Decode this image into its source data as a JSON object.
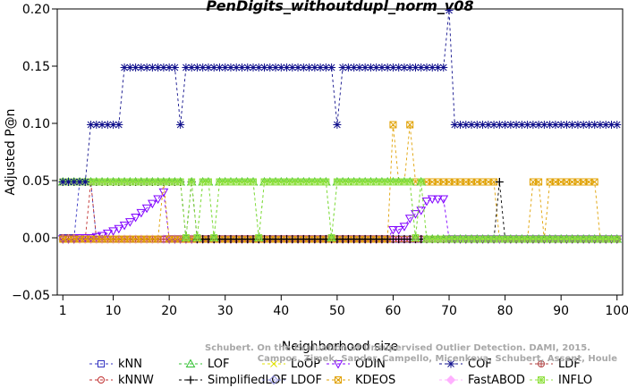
{
  "chart_data": {
    "type": "line",
    "title": "PenDigits_withoutdupl_norm_v08",
    "xlabel": "Neighborhood size",
    "ylabel": "Adjusted P@n",
    "xlim": [
      0,
      101
    ],
    "ylim": [
      -0.05,
      0.2
    ],
    "xticks": [
      1,
      10,
      20,
      30,
      40,
      50,
      60,
      70,
      80,
      90,
      100
    ],
    "yticks": [
      -0.05,
      0.0,
      0.05,
      0.1,
      0.15,
      0.2
    ],
    "ytick_labels": [
      "−0.05",
      "0.00",
      "0.05",
      "0.10",
      "0.15",
      "0.20"
    ],
    "grid": false,
    "legend_position": "bottom",
    "watermark": [
      "Schubert. On the Evaluation of Unsupervised Outlier Detection. DAMI, 2015.",
      "Campos, Zimek, Sander, Campello, Micenkova, Schubert, Assent, Houle"
    ],
    "series": [
      {
        "name": "kNN",
        "color": "#3030c0",
        "marker": "square",
        "segments": [
          [
            1,
            3,
            0.0
          ],
          [
            4,
            6,
            0.0488
          ],
          [
            7,
            100,
            -0.0012
          ]
        ]
      },
      {
        "name": "kNNW",
        "color": "#c03030",
        "marker": "circle",
        "segments": [
          [
            1,
            3,
            0.0
          ],
          [
            4,
            5,
            -0.0012
          ],
          [
            6,
            6,
            0.0488
          ],
          [
            7,
            100,
            -0.0012
          ]
        ]
      },
      {
        "name": "LOF",
        "color": "#30c030",
        "marker": "triangle-up",
        "segments": [
          [
            1,
            22,
            0.0488
          ],
          [
            23,
            23,
            0.0
          ],
          [
            24,
            24,
            0.0488
          ],
          [
            25,
            25,
            0.0
          ],
          [
            26,
            27,
            0.0488
          ],
          [
            28,
            28,
            0.0
          ],
          [
            29,
            35,
            0.0488
          ],
          [
            36,
            36,
            0.0
          ],
          [
            37,
            48,
            0.0488
          ],
          [
            49,
            49,
            0.0
          ],
          [
            50,
            63,
            0.0488
          ],
          [
            64,
            64,
            0.0
          ],
          [
            65,
            65,
            0.0488
          ],
          [
            66,
            100,
            -0.0012
          ]
        ]
      },
      {
        "name": "SimplifiedLOF",
        "color": "#000000",
        "marker": "plus",
        "segments": [
          [
            1,
            22,
            0.0488
          ],
          [
            23,
            23,
            0.0
          ],
          [
            24,
            24,
            0.0488
          ],
          [
            25,
            78,
            -0.0012
          ],
          [
            79,
            79,
            0.0488
          ],
          [
            80,
            100,
            -0.0012
          ]
        ]
      },
      {
        "name": "LoOP",
        "color": "#e0e000",
        "marker": "x",
        "segments": [
          [
            1,
            100,
            -0.0012
          ]
        ]
      },
      {
        "name": "LDOF",
        "color": "#9090e0",
        "marker": "diamond",
        "segments": [
          [
            1,
            100,
            -0.0012
          ]
        ]
      },
      {
        "name": "ODIN",
        "color": "#8000ff",
        "marker": "triangle-down",
        "values": [
          [
            1,
            -0.001
          ],
          [
            2,
            -0.001
          ],
          [
            3,
            -0.001
          ],
          [
            4,
            0.0
          ],
          [
            5,
            0.0
          ],
          [
            6,
            0.0
          ],
          [
            7,
            0.001
          ],
          [
            8,
            0.002
          ],
          [
            9,
            0.004
          ],
          [
            10,
            0.006
          ],
          [
            11,
            0.008
          ],
          [
            12,
            0.011
          ],
          [
            13,
            0.014
          ],
          [
            14,
            0.018
          ],
          [
            15,
            0.022
          ],
          [
            16,
            0.026
          ],
          [
            17,
            0.03
          ],
          [
            18,
            0.034
          ],
          [
            19,
            0.04
          ],
          [
            20,
            -0.001
          ],
          [
            21,
            -0.001
          ],
          [
            22,
            -0.001
          ],
          [
            23,
            -0.001
          ],
          [
            24,
            -0.001
          ],
          [
            25,
            -0.001
          ],
          [
            26,
            -0.001
          ],
          [
            27,
            -0.001
          ],
          [
            28,
            -0.001
          ],
          [
            29,
            -0.001
          ],
          [
            30,
            -0.001
          ],
          [
            31,
            -0.001
          ],
          [
            32,
            -0.001
          ],
          [
            33,
            -0.001
          ],
          [
            34,
            -0.001
          ],
          [
            35,
            -0.001
          ],
          [
            36,
            -0.001
          ],
          [
            37,
            -0.001
          ],
          [
            38,
            -0.001
          ],
          [
            39,
            -0.001
          ],
          [
            40,
            -0.001
          ],
          [
            41,
            -0.001
          ],
          [
            42,
            -0.001
          ],
          [
            43,
            -0.001
          ],
          [
            44,
            -0.001
          ],
          [
            45,
            -0.001
          ],
          [
            46,
            -0.001
          ],
          [
            47,
            -0.001
          ],
          [
            48,
            -0.001
          ],
          [
            49,
            -0.001
          ],
          [
            50,
            -0.001
          ],
          [
            51,
            -0.001
          ],
          [
            52,
            -0.001
          ],
          [
            53,
            -0.001
          ],
          [
            54,
            -0.001
          ],
          [
            55,
            -0.001
          ],
          [
            56,
            -0.001
          ],
          [
            57,
            -0.001
          ],
          [
            58,
            -0.001
          ],
          [
            59,
            -0.001
          ],
          [
            60,
            0.007
          ],
          [
            61,
            0.007
          ],
          [
            62,
            0.01
          ],
          [
            63,
            0.017
          ],
          [
            64,
            0.021
          ],
          [
            65,
            0.024
          ],
          [
            66,
            0.032
          ],
          [
            67,
            0.034
          ],
          [
            68,
            0.034
          ],
          [
            69,
            0.034
          ],
          [
            70,
            -0.001
          ],
          [
            71,
            -0.001
          ],
          [
            72,
            -0.001
          ],
          [
            73,
            -0.001
          ],
          [
            74,
            -0.001
          ],
          [
            75,
            -0.001
          ],
          [
            76,
            -0.001
          ],
          [
            77,
            -0.001
          ],
          [
            78,
            -0.001
          ],
          [
            79,
            -0.001
          ],
          [
            80,
            -0.001
          ],
          [
            81,
            -0.001
          ],
          [
            82,
            -0.001
          ],
          [
            83,
            -0.001
          ],
          [
            84,
            -0.001
          ],
          [
            85,
            -0.001
          ],
          [
            86,
            -0.001
          ],
          [
            87,
            -0.001
          ],
          [
            88,
            -0.001
          ],
          [
            89,
            -0.001
          ],
          [
            90,
            -0.001
          ],
          [
            91,
            -0.001
          ],
          [
            92,
            -0.001
          ],
          [
            93,
            -0.001
          ],
          [
            94,
            -0.001
          ],
          [
            95,
            -0.001
          ],
          [
            96,
            -0.001
          ],
          [
            97,
            -0.001
          ],
          [
            98,
            -0.001
          ],
          [
            99,
            -0.001
          ],
          [
            100,
            -0.001
          ]
        ]
      },
      {
        "name": "KDEOS",
        "color": "#e0a000",
        "marker": "square-x",
        "segments": [
          [
            1,
            18,
            -0.0012
          ],
          [
            19,
            19,
            0.0488
          ],
          [
            20,
            59,
            -0.0012
          ],
          [
            60,
            60,
            0.0988
          ],
          [
            61,
            62,
            0.0488
          ],
          [
            63,
            63,
            0.0988
          ],
          [
            64,
            65,
            0.0488
          ],
          [
            66,
            78,
            0.0488
          ],
          [
            79,
            84,
            -0.0012
          ],
          [
            85,
            86,
            0.0488
          ],
          [
            87,
            87,
            -0.0012
          ],
          [
            88,
            96,
            0.0488
          ],
          [
            97,
            100,
            -0.0012
          ]
        ]
      },
      {
        "name": "COF",
        "color": "#10108c",
        "marker": "star",
        "segments": [
          [
            1,
            5,
            0.0488
          ],
          [
            6,
            11,
            0.0988
          ],
          [
            12,
            21,
            0.1488
          ],
          [
            22,
            22,
            0.0988
          ],
          [
            23,
            49,
            0.1488
          ],
          [
            50,
            50,
            0.0988
          ],
          [
            51,
            69,
            0.1488
          ],
          [
            70,
            70,
            0.1988
          ],
          [
            71,
            100,
            0.0988
          ]
        ]
      },
      {
        "name": "FastABOD",
        "color": "#ffb0ff",
        "marker": "diamond-filled",
        "segments": [
          [
            1,
            100,
            -0.0012
          ]
        ]
      },
      {
        "name": "LDF",
        "color": "#b04040",
        "marker": "circle-plus",
        "segments": [
          [
            1,
            100,
            -0.0012
          ]
        ]
      },
      {
        "name": "INFLO",
        "color": "#90e040",
        "marker": "square-star",
        "segments": [
          [
            1,
            22,
            0.0488
          ],
          [
            23,
            23,
            0.0
          ],
          [
            24,
            24,
            0.0488
          ],
          [
            25,
            25,
            0.0
          ],
          [
            26,
            27,
            0.0488
          ],
          [
            28,
            28,
            0.0
          ],
          [
            29,
            35,
            0.0488
          ],
          [
            36,
            36,
            0.0
          ],
          [
            37,
            48,
            0.0488
          ],
          [
            49,
            49,
            0.0
          ],
          [
            50,
            63,
            0.0488
          ],
          [
            64,
            64,
            0.0
          ],
          [
            65,
            65,
            0.0488
          ],
          [
            66,
            100,
            -0.0012
          ]
        ]
      }
    ]
  }
}
